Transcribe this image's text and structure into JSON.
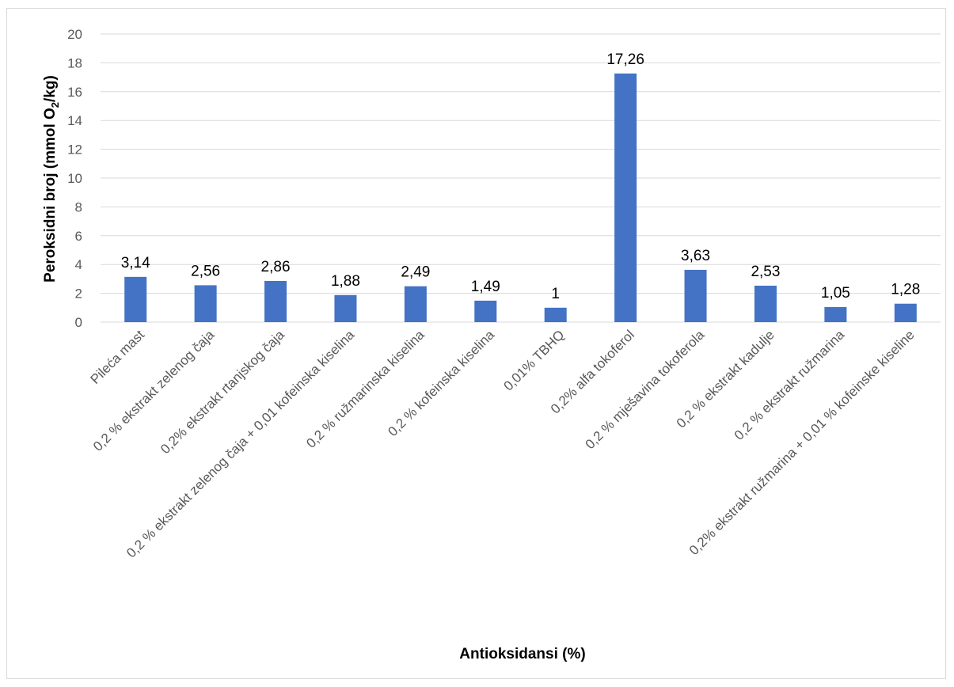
{
  "chart_data": {
    "type": "bar",
    "categories": [
      "Pileća mast",
      "0,2 % ekstrakt zelenog čaja",
      "0,2% ekstrakt rtanjskog čaja",
      "0,2 % ekstrakt zelenog čaja + 0,01 kofeinska kiselina",
      "0,2 % ružmarinska kiselina",
      "0,2 % kofeinska kiselina",
      "0,01% TBHQ",
      "0,2% alfa tokoferol",
      "0,2 % mješavina tokoferola",
      "0,2 % ekstrakt kadulje",
      "0,2 % ekstrakt ružmarina",
      "0,2% ekstrakt ružmarina + 0,01 % kofeinske kiseline"
    ],
    "values": [
      3.14,
      2.56,
      2.86,
      1.88,
      2.49,
      1.49,
      1,
      17.26,
      3.63,
      2.53,
      1.05,
      1.28
    ],
    "data_labels": [
      "3,14",
      "2,56",
      "2,86",
      "1,88",
      "2,49",
      "1,49",
      "1",
      "17,26",
      "3,63",
      "2,53",
      "1,05",
      "1,28"
    ],
    "yticks": [
      0,
      2,
      4,
      6,
      8,
      10,
      12,
      14,
      16,
      18,
      20
    ],
    "ylim": [
      0,
      20
    ],
    "xlabel": "Antioksidansi (%)",
    "ylabel_main": "Peroksidni broj (mmol O",
    "ylabel_sub": "2",
    "ylabel_tail": "/kg)",
    "grid": true,
    "legend": "none",
    "bar_color": "#4472C4",
    "grid_color": "#d9d9d9"
  }
}
